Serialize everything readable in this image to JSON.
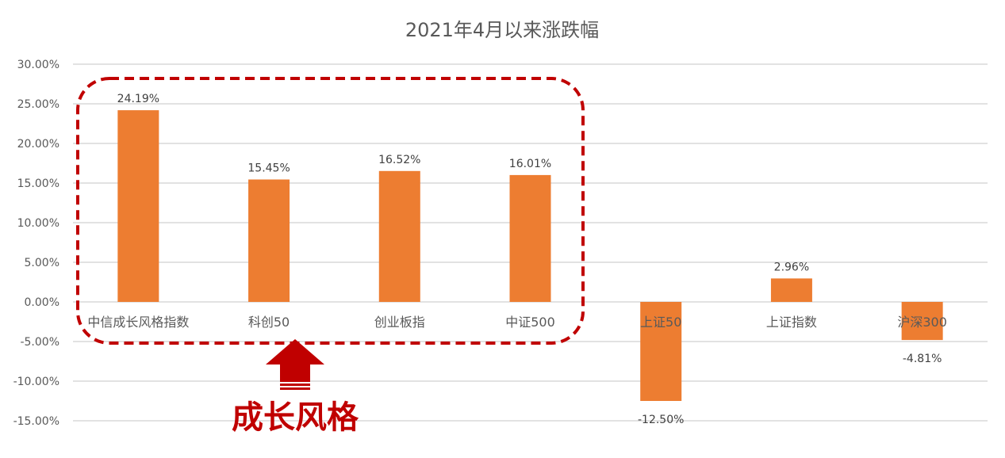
{
  "chart_data": {
    "type": "bar",
    "title": "2021年4月以来涨跌幅",
    "categories": [
      "中信成长风格指数",
      "科创50",
      "创业板指",
      "中证500",
      "上证50",
      "上证指数",
      "沪深300"
    ],
    "values": [
      24.19,
      15.45,
      16.52,
      16.01,
      -12.5,
      2.96,
      -4.81
    ],
    "data_labels": [
      "24.19%",
      "15.45%",
      "16.52%",
      "16.01%",
      "-12.50%",
      "2.96%",
      "-4.81%"
    ],
    "ylim": [
      -15,
      30
    ],
    "yticks": [
      30,
      25,
      20,
      15,
      10,
      5,
      0,
      -5,
      -10,
      -15
    ],
    "ytick_labels": [
      "30.00%",
      "25.00%",
      "20.00%",
      "15.00%",
      "10.00%",
      "5.00%",
      "0.00%",
      "-5.00%",
      "-10.00%",
      "-15.00%"
    ],
    "grid": true,
    "bar_color": "#ED7D31",
    "annotation": {
      "text": "成长风格",
      "color": "#C00000",
      "highlighted_categories": [
        "中信成长风格指数",
        "科创50",
        "创业板指",
        "中证500"
      ]
    }
  }
}
